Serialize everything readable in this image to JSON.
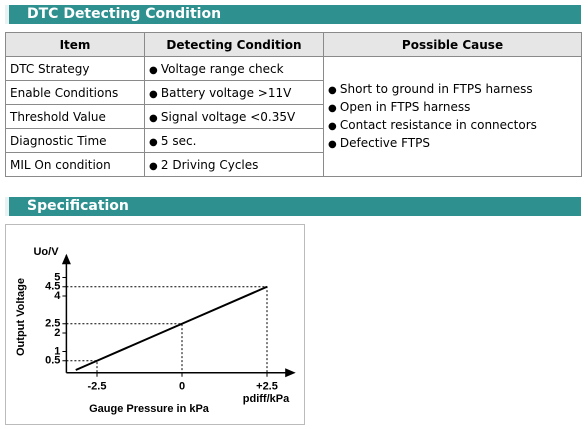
{
  "detecting": {
    "title": "DTC Detecting Condition",
    "table": {
      "headers": [
        "Item",
        "Detecting Condition",
        "Possible Cause"
      ],
      "rows": [
        [
          "DTC Strategy",
          "Voltage range check"
        ],
        [
          "Enable Conditions",
          "Battery voltage >11V"
        ],
        [
          "Threshold Value",
          "Signal voltage <0.35V"
        ],
        [
          "Diagnostic Time",
          "5 sec."
        ],
        [
          "MIL On condition",
          "2 Driving Cycles"
        ]
      ],
      "causes": [
        "Short to ground in FTPS harness",
        "Open in FTPS harness",
        "Contact resistance in connectors",
        "Defective FTPS"
      ]
    }
  },
  "specification": {
    "title": "Specification",
    "chart": {
      "type": "line",
      "y_title": "Uo/V",
      "y_label": "Output Voltage",
      "x_label": "Gauge Pressure in kPa",
      "x_unit": "pdiff/kPa",
      "x": [
        -3.125,
        -2.5,
        0,
        2.5
      ],
      "y": [
        0,
        0.5,
        2.5,
        4.5
      ],
      "color": "#000000",
      "xlim": [
        -3.4,
        3.3
      ],
      "ylim": [
        -0.15,
        6.2
      ],
      "xticks": [
        -2.5,
        0,
        {
          "value": 2.5,
          "label": "+2.5"
        }
      ],
      "yticks": [
        0.5,
        1,
        2,
        2.5,
        4,
        4.5,
        5
      ]
    }
  }
}
